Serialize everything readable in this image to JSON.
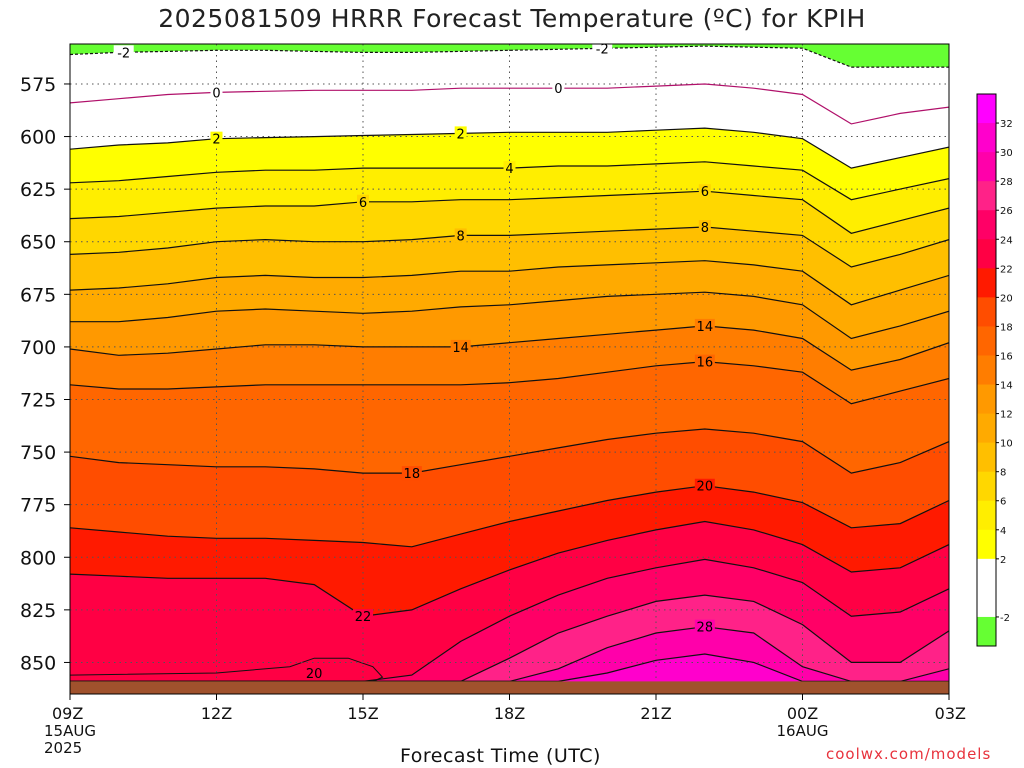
{
  "title": "2025081509 HRRR Forecast Temperature (ºC) for KPIH",
  "xlabel": "Forecast Time (UTC)",
  "credit": "coolwx.com/models",
  "chart_data": {
    "type": "contour",
    "title": "2025081509 HRRR Forecast Temperature (ºC) for KPIH",
    "xlabel": "Forecast Time (UTC)",
    "ylabel": "",
    "x_ticks": [
      {
        "hour": 0,
        "label": "09Z",
        "sub": [
          "15AUG",
          "2025"
        ]
      },
      {
        "hour": 3,
        "label": "12Z",
        "sub": []
      },
      {
        "hour": 6,
        "label": "15Z",
        "sub": []
      },
      {
        "hour": 9,
        "label": "18Z",
        "sub": []
      },
      {
        "hour": 12,
        "label": "21Z",
        "sub": []
      },
      {
        "hour": 15,
        "label": "00Z",
        "sub": [
          "16AUG"
        ]
      },
      {
        "hour": 18,
        "label": "03Z",
        "sub": []
      }
    ],
    "y_ticks": [
      575,
      600,
      625,
      650,
      675,
      700,
      725,
      750,
      775,
      800,
      825,
      850
    ],
    "ylim": [
      556,
      865
    ],
    "xlim": [
      0,
      18
    ],
    "ground_level_hpa": 859,
    "fill_levels": [
      -4,
      -2,
      0,
      2,
      4,
      6,
      8,
      10,
      12,
      14,
      16,
      18,
      20,
      22,
      24,
      26,
      28,
      30,
      32,
      34
    ],
    "fill_colors": [
      "#66ff33",
      "#ffffff",
      "#ffffff",
      "#ffff00",
      "#ffee00",
      "#ffd700",
      "#ffbf00",
      "#ffaa00",
      "#ff9900",
      "#ff7d00",
      "#ff6600",
      "#ff4d00",
      "#ff1a00",
      "#ff0044",
      "#ff0066",
      "#ff2288",
      "#ff00aa",
      "#ff00cc",
      "#ff00ff"
    ],
    "colorbar_labels": [
      -2,
      2,
      4,
      6,
      8,
      10,
      12,
      14,
      16,
      18,
      20,
      22,
      24,
      26,
      28,
      30,
      32
    ],
    "hours": [
      0,
      1,
      2,
      3,
      4,
      5,
      6,
      7,
      8,
      9,
      10,
      11,
      12,
      13,
      14,
      15,
      16,
      17,
      18
    ],
    "isotherms": [
      {
        "value": -2,
        "label": "-2",
        "p": [
          561,
          560,
          559.5,
          559,
          559,
          559.5,
          560,
          560,
          559.5,
          559,
          558.5,
          558,
          557.5,
          557,
          557.5,
          558,
          567,
          567,
          567
        ]
      },
      {
        "value": 0,
        "label": "0",
        "p": [
          584,
          582,
          580,
          579,
          578.5,
          578,
          578,
          578,
          577,
          577,
          577,
          577,
          576,
          575,
          577,
          580,
          594,
          589,
          586
        ]
      },
      {
        "value": 2,
        "label": "2",
        "p": [
          606,
          604,
          603,
          601,
          600.5,
          600,
          599.5,
          599,
          598.5,
          598,
          598,
          598,
          597,
          596,
          598,
          601,
          615,
          610,
          605
        ]
      },
      {
        "value": 4,
        "label": "4",
        "p": [
          622,
          621,
          619,
          617,
          616,
          616,
          615,
          615,
          615,
          615,
          614,
          614,
          613,
          612,
          614,
          616,
          630,
          625,
          620
        ]
      },
      {
        "value": 6,
        "label": "6",
        "p": [
          639,
          638,
          636,
          634,
          633,
          633,
          631,
          631,
          630,
          630,
          629,
          628,
          627,
          626,
          628,
          630,
          646,
          640,
          634
        ]
      },
      {
        "value": 8,
        "label": "8",
        "p": [
          656,
          655,
          653,
          650,
          649,
          650,
          650,
          649,
          647,
          647,
          646,
          645,
          644,
          643,
          645,
          647,
          662,
          656,
          649
        ]
      },
      {
        "value": 10,
        "label": "",
        "p": [
          673,
          672,
          670,
          667,
          666,
          667,
          667,
          666,
          664,
          664,
          662,
          661,
          660,
          659,
          661,
          664,
          680,
          673,
          666
        ]
      },
      {
        "value": 12,
        "label": "",
        "p": [
          688,
          688,
          686,
          683,
          682,
          683,
          684,
          683,
          681,
          680,
          678,
          676,
          675,
          674,
          676,
          680,
          696,
          690,
          683
        ]
      },
      {
        "value": 14,
        "label": "14",
        "p": [
          701,
          704,
          703,
          701,
          699,
          699,
          700,
          700,
          700,
          698,
          696,
          694,
          692,
          690,
          692,
          696,
          711,
          706,
          698
        ]
      },
      {
        "value": 16,
        "label": "16",
        "p": [
          718,
          720,
          720,
          719,
          718,
          718,
          718,
          718,
          718,
          717,
          715,
          712,
          709,
          707,
          709,
          712,
          727,
          721,
          715
        ]
      },
      {
        "value": 18,
        "label": "18",
        "p": [
          752,
          755,
          756,
          757,
          757,
          758,
          760,
          760,
          756,
          752,
          748,
          744,
          741,
          739,
          741,
          745,
          760,
          755,
          745
        ]
      },
      {
        "value": 20,
        "label": "20",
        "p": [
          786,
          788,
          790,
          791,
          791,
          792,
          793,
          795,
          789,
          783,
          778,
          773,
          769,
          766,
          769,
          774,
          786,
          784,
          773
        ]
      },
      {
        "value": 22,
        "label": "22",
        "p": [
          808,
          809,
          810,
          810,
          810,
          813,
          828,
          825,
          815,
          806,
          798,
          792,
          787,
          783,
          787,
          794,
          807,
          805,
          794
        ]
      },
      {
        "value": 24,
        "label": "",
        "p": [
          859,
          859,
          859,
          859,
          859,
          859,
          859,
          856,
          840,
          828,
          818,
          810,
          805,
          801,
          805,
          812,
          828,
          826,
          815
        ]
      },
      {
        "value": 26,
        "label": "",
        "p": [
          859,
          859,
          859,
          859,
          859,
          859,
          859,
          859,
          859,
          848,
          836,
          828,
          821,
          818,
          821,
          832,
          850,
          850,
          835
        ]
      },
      {
        "value": 28,
        "label": "28",
        "p": [
          859,
          859,
          859,
          859,
          859,
          859,
          859,
          859,
          859,
          859,
          853,
          843,
          836,
          833,
          836,
          852,
          859,
          859,
          853
        ]
      },
      {
        "value": 30,
        "label": "",
        "p": [
          859,
          859,
          859,
          859,
          859,
          859,
          859,
          859,
          859,
          859,
          859,
          855,
          849,
          846,
          850,
          859,
          859,
          859,
          859
        ]
      }
    ],
    "bubbles": [
      {
        "value": 20,
        "label": "20",
        "fill_color": "#ff0044",
        "line_color": "#111",
        "hour_start": 0,
        "hour_end": 6.4,
        "outline": [
          [
            0,
            859
          ],
          [
            0,
            856
          ],
          [
            3,
            855
          ],
          [
            4.5,
            852
          ],
          [
            5,
            848
          ],
          [
            5.7,
            848
          ],
          [
            6.2,
            852
          ],
          [
            6.4,
            857
          ],
          [
            6.2,
            859
          ]
        ]
      }
    ],
    "contour_label_positions": [
      {
        "label": "-2",
        "hour": 1.1
      },
      {
        "label": "-2",
        "hour": 10.9
      },
      {
        "label": "0",
        "hour": 3
      },
      {
        "label": "0",
        "hour": 10
      },
      {
        "label": "2",
        "hour": 3
      },
      {
        "label": "2",
        "hour": 8
      },
      {
        "label": "4",
        "hour": 9
      },
      {
        "label": "6",
        "hour": 6
      },
      {
        "label": "6",
        "hour": 13
      },
      {
        "label": "8",
        "hour": 8
      },
      {
        "label": "8",
        "hour": 13
      },
      {
        "label": "14",
        "hour": 8
      },
      {
        "label": "14",
        "hour": 13
      },
      {
        "label": "16",
        "hour": 13
      },
      {
        "label": "18",
        "hour": 7
      },
      {
        "label": "20",
        "hour": 13
      },
      {
        "label": "22",
        "hour": 6
      },
      {
        "label": "28",
        "hour": 13
      },
      {
        "label": "20",
        "hour": 5,
        "bubble": true
      }
    ],
    "ground_color": "#a0522d"
  }
}
